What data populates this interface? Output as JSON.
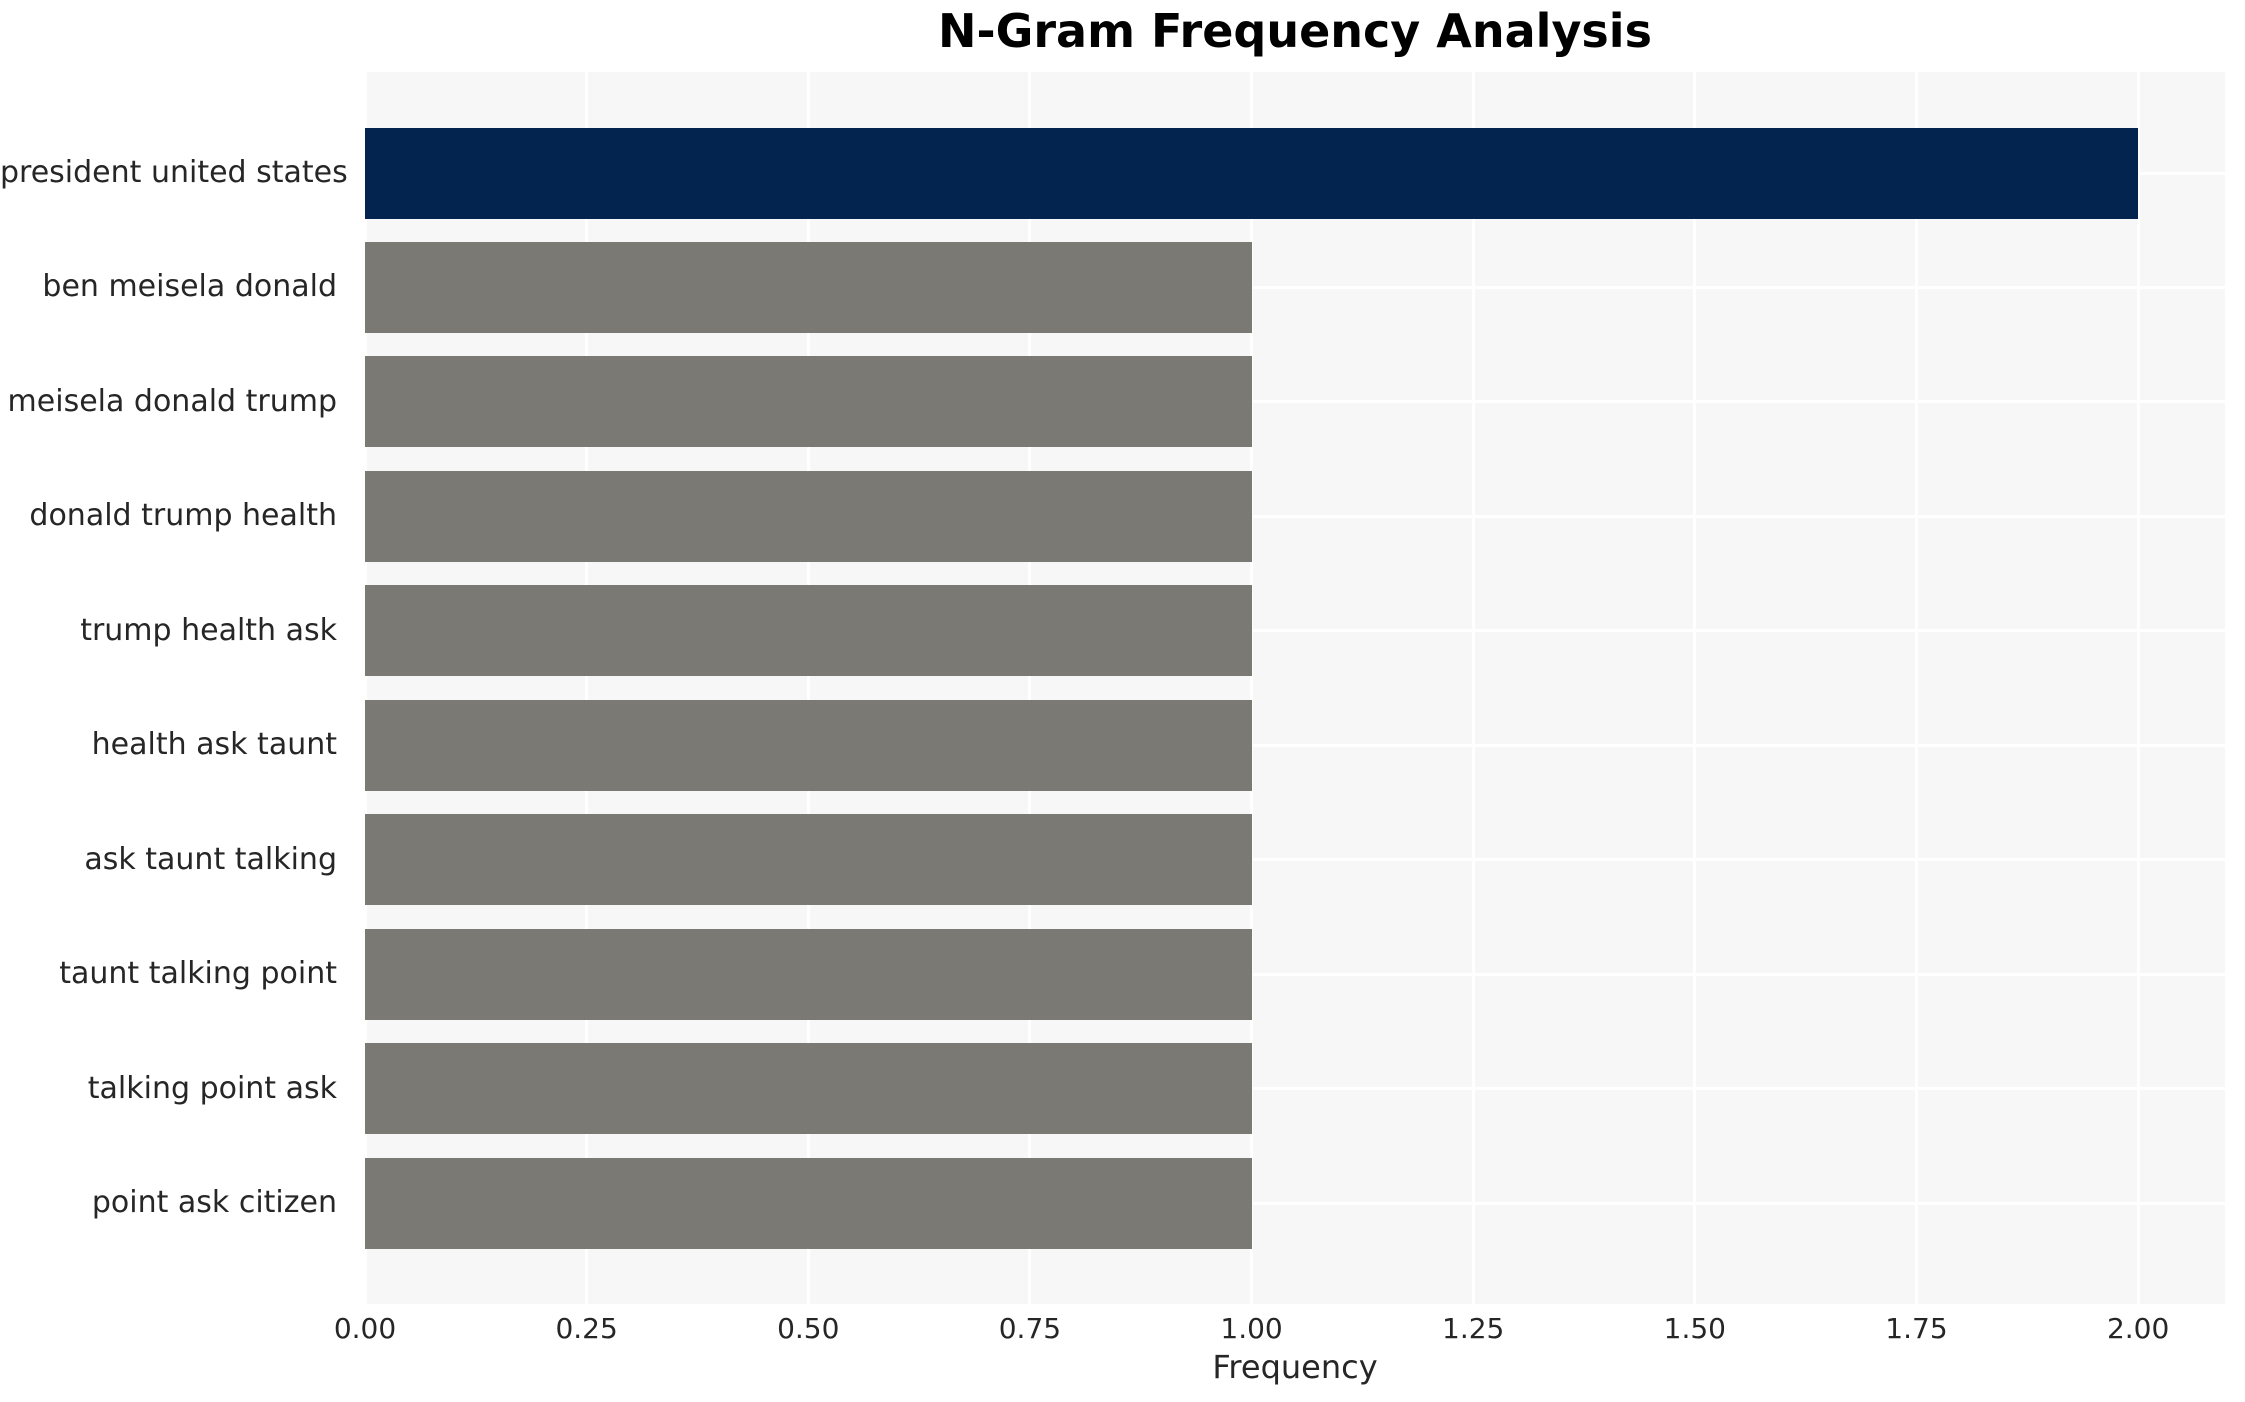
{
  "chart_data": {
    "type": "bar",
    "orientation": "horizontal",
    "title": "N-Gram Frequency Analysis",
    "xlabel": "Frequency",
    "ylabel": "",
    "categories": [
      "president united states",
      "ben meisela donald",
      "meisela donald trump",
      "donald trump health",
      "trump health ask",
      "health ask taunt",
      "ask taunt talking",
      "taunt talking point",
      "talking point ask",
      "point ask citizen"
    ],
    "values": [
      2.0,
      1.0,
      1.0,
      1.0,
      1.0,
      1.0,
      1.0,
      1.0,
      1.0,
      1.0
    ],
    "bar_colors": [
      "#02244e",
      "#7a7974",
      "#7a7974",
      "#7a7974",
      "#7a7974",
      "#7a7974",
      "#7a7974",
      "#7a7974",
      "#7a7974",
      "#7a7974"
    ],
    "xlim": [
      0,
      2.098
    ],
    "xticks": [
      0.0,
      0.25,
      0.5,
      0.75,
      1.0,
      1.25,
      1.5,
      1.75,
      2.0
    ],
    "xtick_labels": [
      "0.00",
      "0.25",
      "0.50",
      "0.75",
      "1.00",
      "1.25",
      "1.50",
      "1.75",
      "2.00"
    ],
    "grid": "on",
    "legend": "none",
    "colors": {
      "plot_bg": "#f7f7f7",
      "grid": "#ffffff",
      "text": "#262626",
      "title": "#000000",
      "highlight_bar": "#02244e",
      "default_bar": "#7a7974"
    }
  }
}
